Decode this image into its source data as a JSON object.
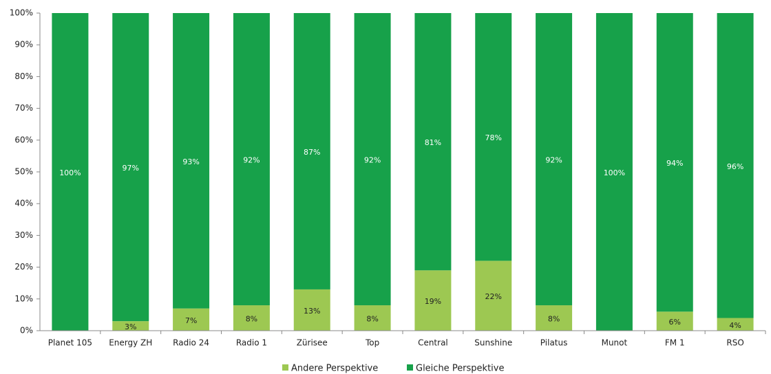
{
  "chart_data": {
    "type": "stacked_bar",
    "categories": [
      "Planet 105",
      "Energy ZH",
      "Radio 24",
      "Radio 1",
      "Zürisee",
      "Top",
      "Central",
      "Sunshine",
      "Pilatus",
      "Munot",
      "FM 1",
      "RSO"
    ],
    "series": [
      {
        "name": "Andere Perspektive",
        "color": "#9dc852",
        "values": [
          0,
          3,
          7,
          8,
          13,
          8,
          19,
          22,
          8,
          0,
          6,
          4
        ],
        "value_labels": [
          null,
          "3%",
          "7%",
          "8%",
          "13%",
          "8%",
          "19%",
          "22%",
          "8%",
          null,
          "6%",
          "4%"
        ]
      },
      {
        "name": "Gleiche Perspektive",
        "color": "#17a14a",
        "values": [
          100,
          97,
          93,
          92,
          87,
          92,
          81,
          78,
          92,
          100,
          94,
          96
        ],
        "value_labels": [
          "100%",
          "97%",
          "93%",
          "92%",
          "87%",
          "92%",
          "81%",
          "78%",
          "92%",
          "100%",
          "94%",
          "96%"
        ]
      }
    ],
    "ylim": [
      0,
      100
    ],
    "yticks": [
      {
        "value": 0,
        "label": "0%"
      },
      {
        "value": 10,
        "label": "10%"
      },
      {
        "value": 20,
        "label": "20%"
      },
      {
        "value": 30,
        "label": "30%"
      },
      {
        "value": 40,
        "label": "40%"
      },
      {
        "value": 50,
        "label": "50%"
      },
      {
        "value": 60,
        "label": "60%"
      },
      {
        "value": 70,
        "label": "70%"
      },
      {
        "value": 80,
        "label": "80%"
      },
      {
        "value": 90,
        "label": "90%"
      },
      {
        "value": 100,
        "label": "100%"
      }
    ],
    "legend": "bottom"
  }
}
